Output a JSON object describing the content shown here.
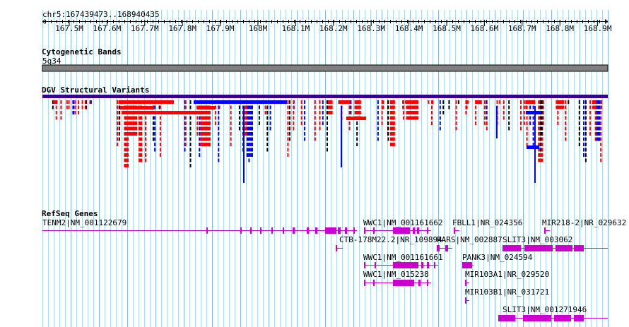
{
  "coordinate_readout": "chr5:167439473..168940435",
  "ruler": {
    "ticks": [
      "167.5M",
      "167.6M",
      "167.7M",
      "167.8M",
      "167.9M",
      "168M",
      "168.1M",
      "168.2M",
      "168.3M",
      "168.4M",
      "168.5M",
      "168.6M",
      "168.7M",
      "168.8M",
      "168.9M"
    ]
  },
  "tracks": {
    "cytoband": {
      "title": "Cytogenetic Bands",
      "band": "5q34"
    },
    "dgv": {
      "title": "DGV Structural Variants"
    },
    "refseq": {
      "title": "RefSeq Genes",
      "genes": [
        {
          "label": "TENM2|NM_001122679"
        },
        {
          "label": "WWC1|NM_001161662"
        },
        {
          "label": "FBLL1|NR_024356"
        },
        {
          "label": "MIR218-2|NR_029632"
        },
        {
          "label": "CTB-178M22.2|NR_109894"
        },
        {
          "label": "RARS|NM_002887"
        },
        {
          "label": "SLIT3|NM_003062"
        },
        {
          "label": "WWC1|NM_001161661"
        },
        {
          "label": "PANK3|NM_024594"
        },
        {
          "label": "WWC1|NM_015238"
        },
        {
          "label": "MIR103A1|NR_029520"
        },
        {
          "label": "MIR103B1|NR_031721"
        },
        {
          "label": "SLIT3|NM_001271946"
        }
      ]
    }
  },
  "colors": {
    "grid": "#a8d8e6",
    "variant_gain": "#0000ff",
    "variant_loss": "#ff0000",
    "variant_other": "#000000",
    "variant_header": "#3b0082",
    "gene": "#cc00cc",
    "cytoband_fill": "#808080"
  }
}
